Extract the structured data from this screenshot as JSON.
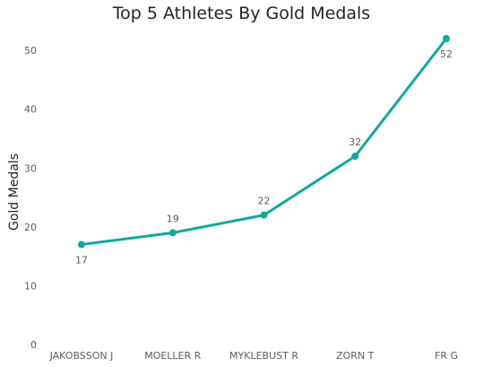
{
  "chart_data": {
    "type": "line",
    "title": "Top 5 Athletes By Gold Medals",
    "xlabel": "",
    "ylabel": "Gold Medals",
    "categories": [
      "JAKOBSSON J",
      "MOELLER R",
      "MYKLEBUST R",
      "ZORN T",
      "FR G"
    ],
    "series": [
      {
        "values": [
          17,
          19,
          22,
          32,
          52
        ]
      }
    ],
    "data_labels": [
      "17",
      "19",
      "22",
      "32",
      "52"
    ],
    "y_ticks": [
      0,
      10,
      20,
      30,
      40,
      50
    ],
    "ylim": [
      0,
      52
    ],
    "grid": false,
    "legend": "none",
    "line_color": "#12a89d"
  }
}
